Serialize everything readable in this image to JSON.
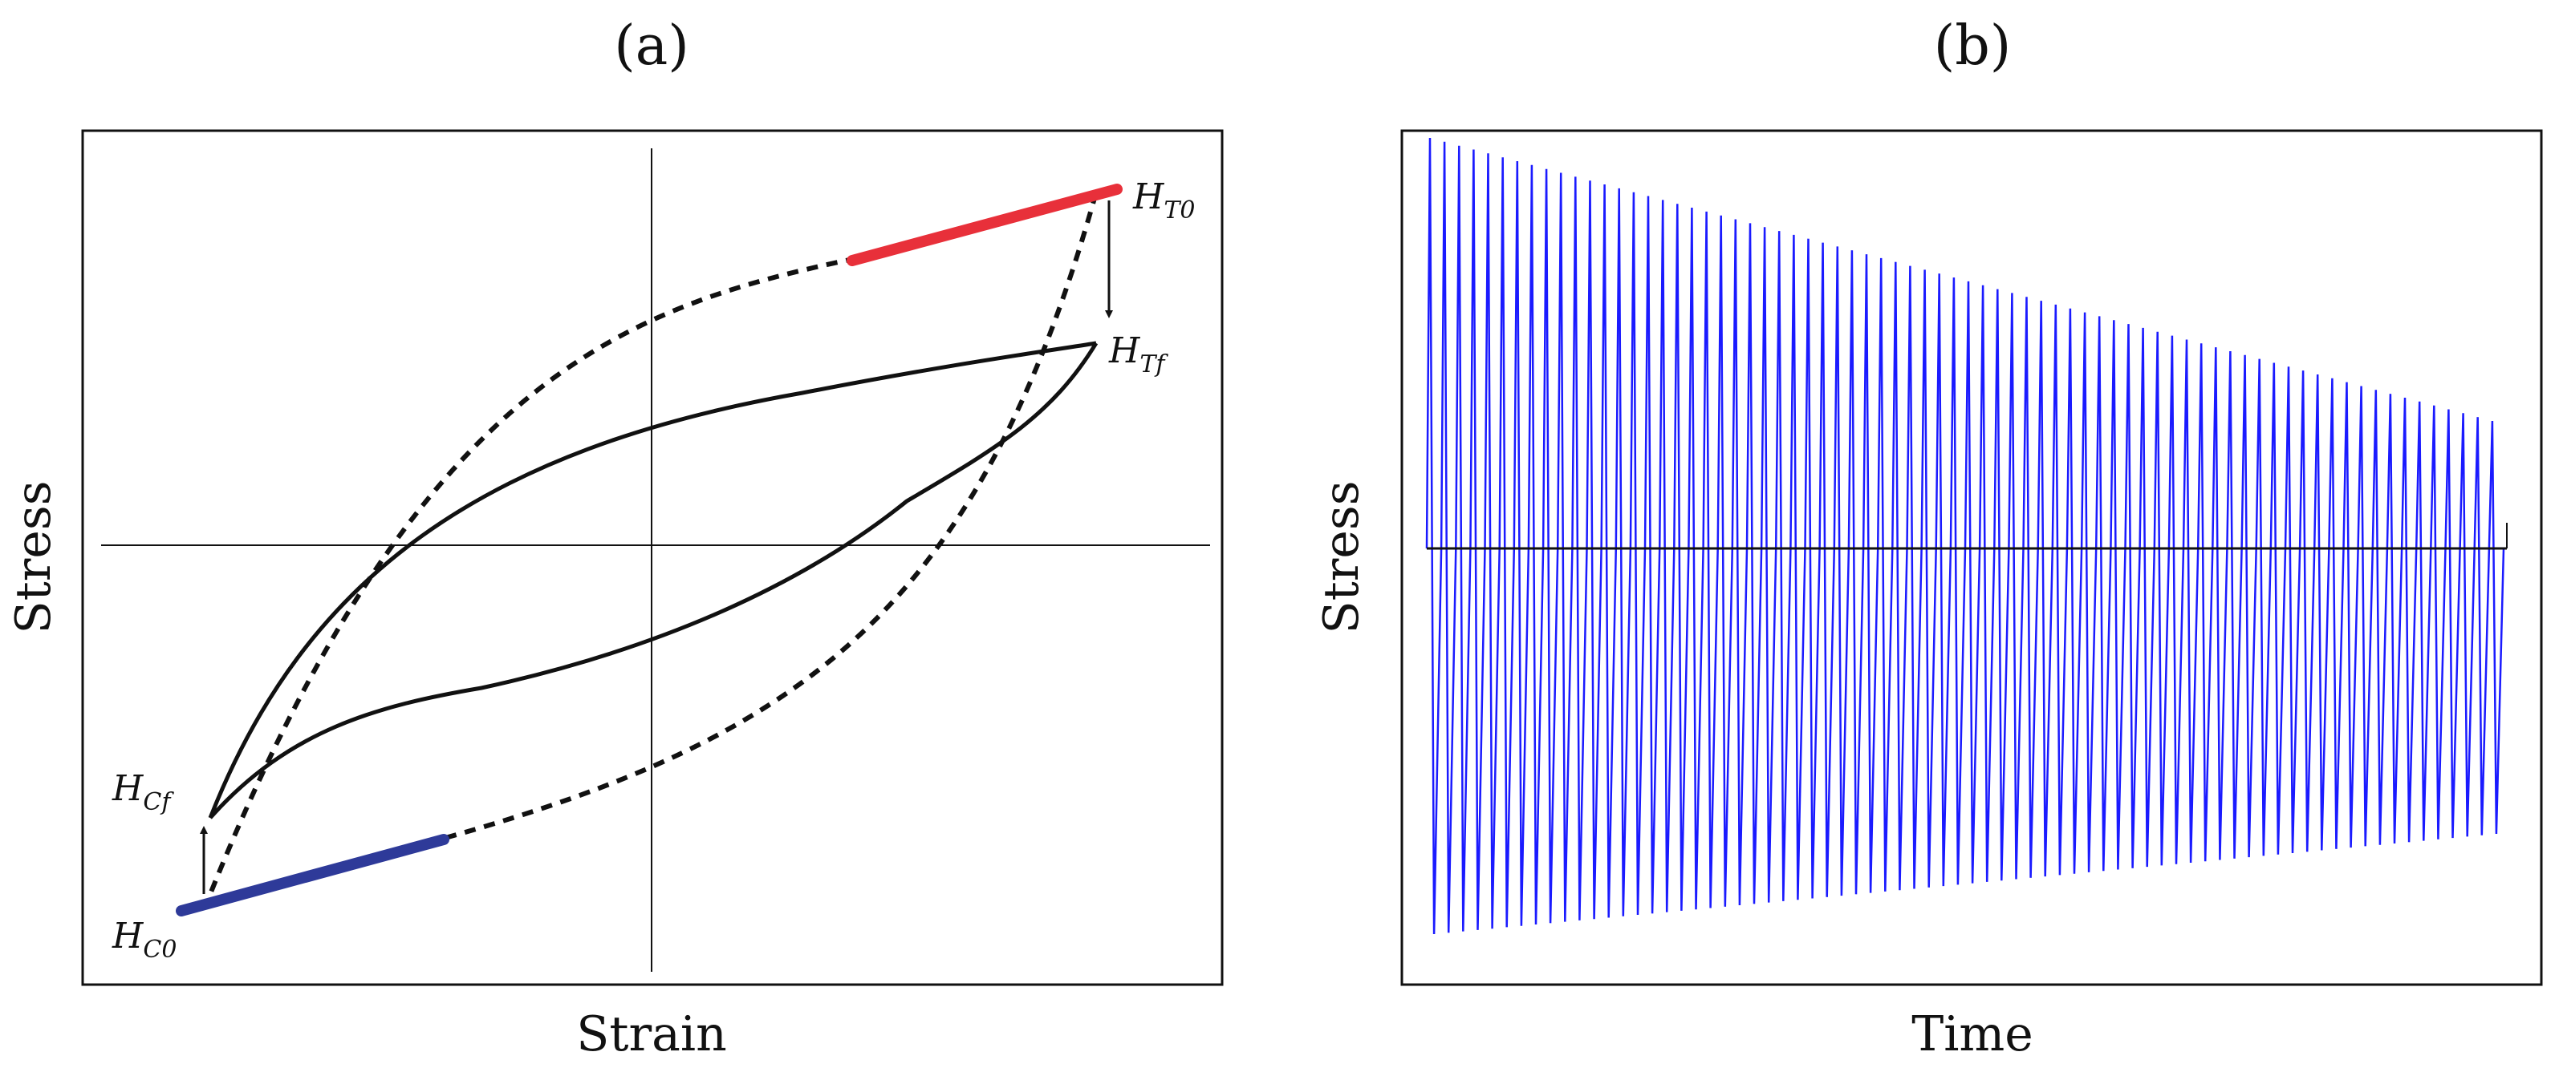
{
  "panel_a": {
    "label": "(a)",
    "xlabel": "Strain",
    "ylabel": "Stress",
    "annotations": {
      "ht0": {
        "base": "H",
        "sub": "T0"
      },
      "htf": {
        "base": "H",
        "sub": "Tf"
      },
      "hcf": {
        "base": "H",
        "sub": "Cf"
      },
      "hc0": {
        "base": "H",
        "sub": "C0"
      }
    },
    "colors": {
      "initial_loop": "#111111",
      "final_loop": "#111111",
      "tension_hardening": "#e8303a",
      "compression_hardening": "#2e3a99"
    }
  },
  "panel_b": {
    "label": "(b)",
    "xlabel": "Time",
    "ylabel": "Stress",
    "signal_color": "#1a1aff",
    "cycles": 74
  }
}
